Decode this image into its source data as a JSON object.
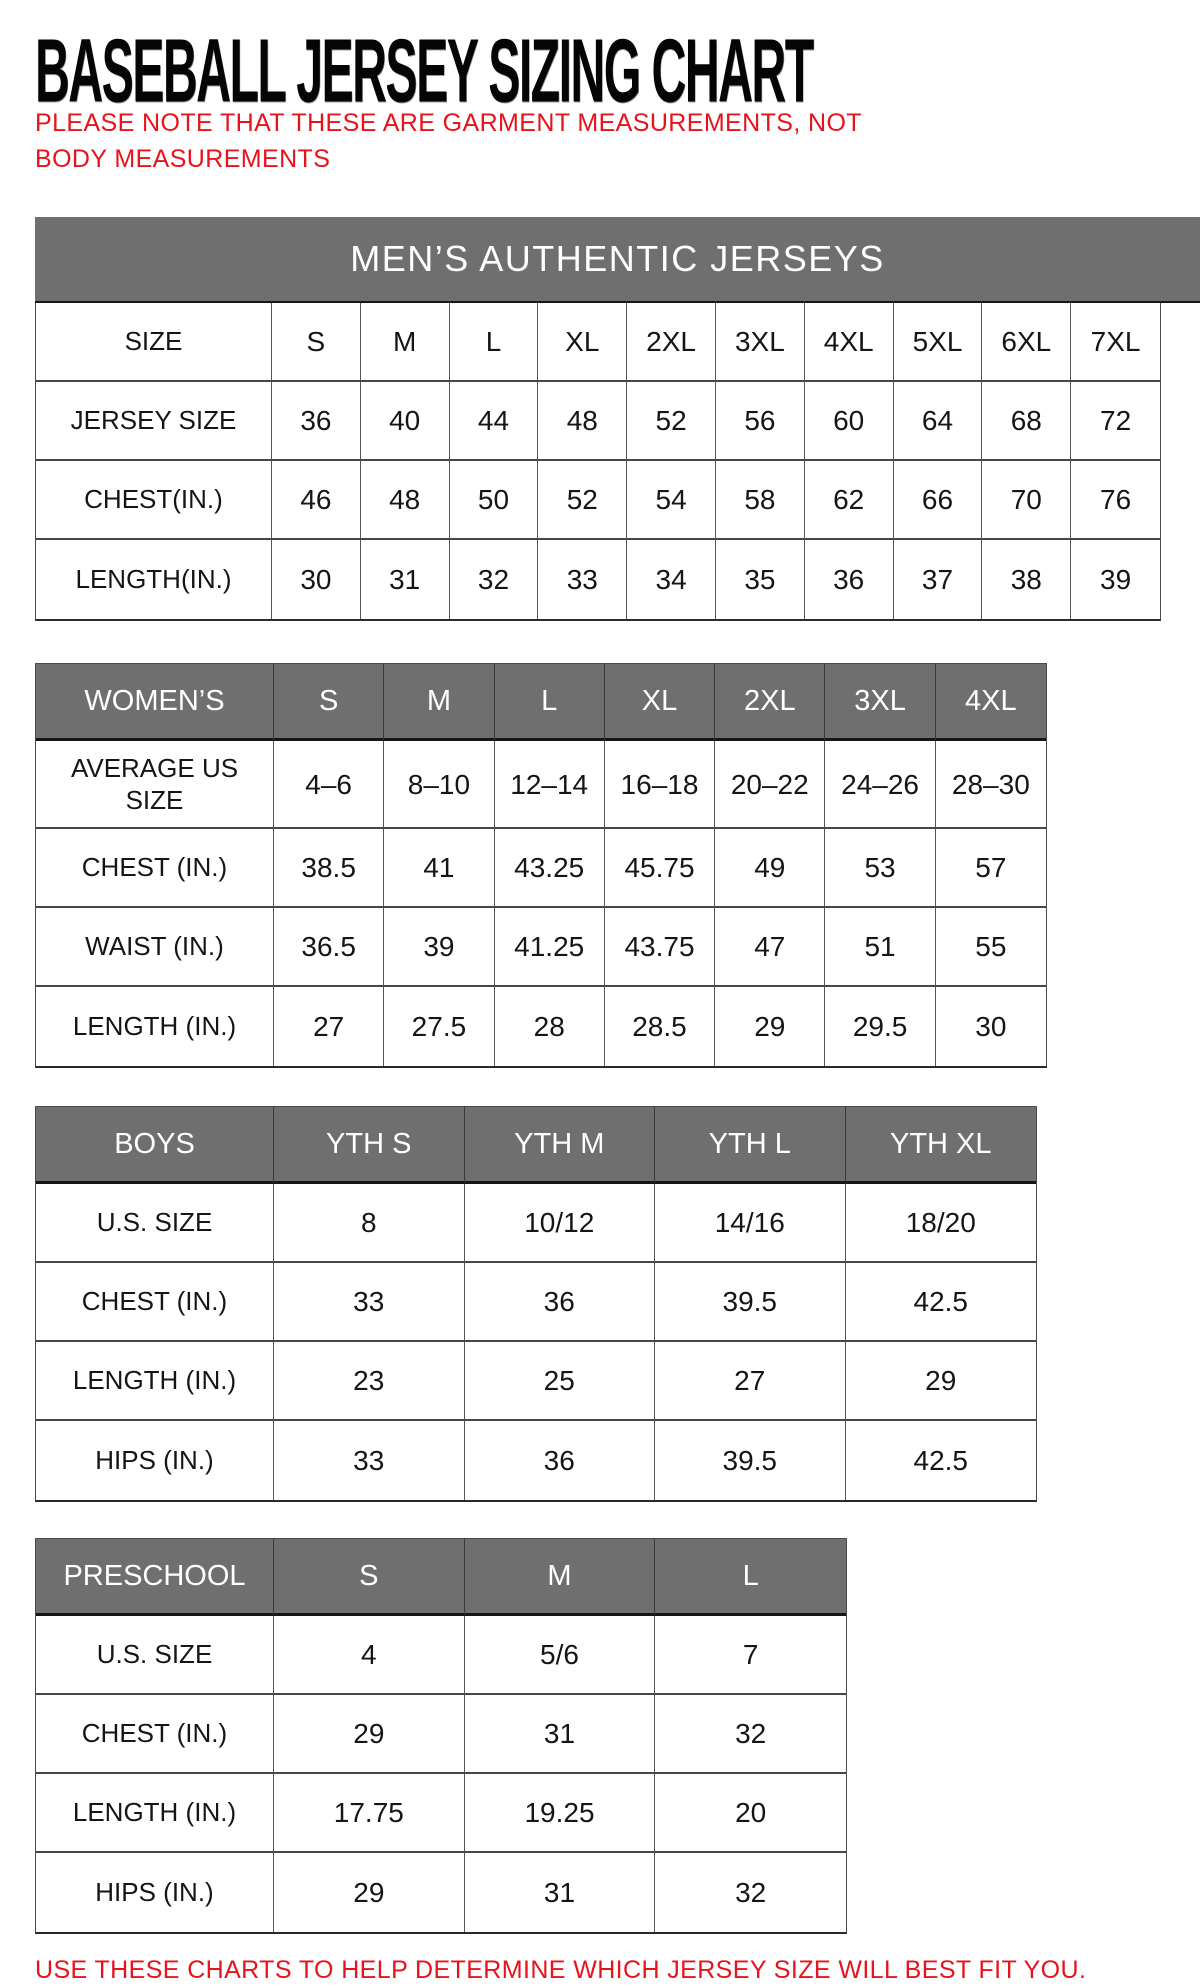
{
  "header": {
    "title": "BASEBALL JERSEY SIZING CHART",
    "note": "PLEASE NOTE THAT THESE ARE GARMENT MEASUREMENTS, NOT BODY MEASUREMENTS"
  },
  "footer": {
    "text": "USE THESE CHARTS TO HELP DETERMINE WHICH JERSEY SIZE WILL BEST FIT YOU."
  },
  "colors": {
    "header_gray": "#6f6f6f",
    "accent_red": "#e8121b",
    "border_dark": "#4a4a4a",
    "text_black": "#151515",
    "header_text_white": "#ffffff"
  },
  "tables": [
    {
      "id": "mens",
      "banner": "MEN’S AUTHENTIC JERSEYS",
      "rows": [
        {
          "label": "SIZE",
          "values": [
            "S",
            "M",
            "L",
            "XL",
            "2XL",
            "3XL",
            "4XL",
            "5XL",
            "6XL",
            "7XL"
          ]
        },
        {
          "label": "JERSEY SIZE",
          "values": [
            "36",
            "40",
            "44",
            "48",
            "52",
            "56",
            "60",
            "64",
            "68",
            "72"
          ]
        },
        {
          "label": "CHEST(IN.)",
          "values": [
            "46",
            "48",
            "50",
            "52",
            "54",
            "58",
            "62",
            "66",
            "70",
            "76"
          ]
        },
        {
          "label": "LENGTH(IN.)",
          "values": [
            "30",
            "31",
            "32",
            "33",
            "34",
            "35",
            "36",
            "37",
            "38",
            "39"
          ]
        }
      ]
    },
    {
      "id": "womens",
      "header": {
        "label": "WOMEN’S",
        "columns": [
          "S",
          "M",
          "L",
          "XL",
          "2XL",
          "3XL",
          "4XL"
        ]
      },
      "rows": [
        {
          "label": "AVERAGE US SIZE",
          "values": [
            "4–6",
            "8–10",
            "12–14",
            "16–18",
            "20–22",
            "24–26",
            "28–30"
          ]
        },
        {
          "label": "CHEST (IN.)",
          "values": [
            "38.5",
            "41",
            "43.25",
            "45.75",
            "49",
            "53",
            "57"
          ]
        },
        {
          "label": "WAIST (IN.)",
          "values": [
            "36.5",
            "39",
            "41.25",
            "43.75",
            "47",
            "51",
            "55"
          ]
        },
        {
          "label": "LENGTH (IN.)",
          "values": [
            "27",
            "27.5",
            "28",
            "28.5",
            "29",
            "29.5",
            "30"
          ]
        }
      ]
    },
    {
      "id": "boys",
      "header": {
        "label": "BOYS",
        "columns": [
          "YTH S",
          "YTH M",
          "YTH L",
          "YTH XL"
        ]
      },
      "rows": [
        {
          "label": "U.S. SIZE",
          "values": [
            "8",
            "10/12",
            "14/16",
            "18/20"
          ]
        },
        {
          "label": "CHEST (IN.)",
          "values": [
            "33",
            "36",
            "39.5",
            "42.5"
          ]
        },
        {
          "label": "LENGTH (IN.)",
          "values": [
            "23",
            "25",
            "27",
            "29"
          ]
        },
        {
          "label": "HIPS (IN.)",
          "values": [
            "33",
            "36",
            "39.5",
            "42.5"
          ]
        }
      ]
    },
    {
      "id": "preschool",
      "header": {
        "label": "PRESCHOOL",
        "columns": [
          "S",
          "M",
          "L"
        ]
      },
      "rows": [
        {
          "label": "U.S. SIZE",
          "values": [
            "4",
            "5/6",
            "7"
          ]
        },
        {
          "label": "CHEST (IN.)",
          "values": [
            "29",
            "31",
            "32"
          ]
        },
        {
          "label": "LENGTH (IN.)",
          "values": [
            "17.75",
            "19.25",
            "20"
          ]
        },
        {
          "label": "HIPS (IN.)",
          "values": [
            "29",
            "31",
            "32"
          ]
        }
      ]
    }
  ]
}
